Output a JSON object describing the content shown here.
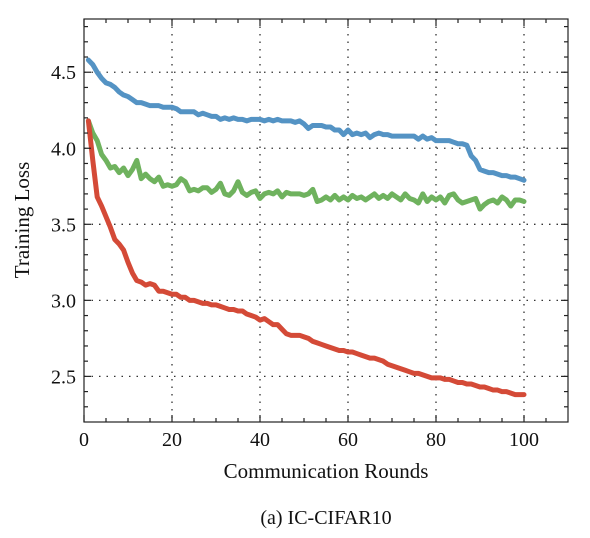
{
  "chart_data": {
    "type": "line",
    "title": "",
    "caption": "(a) IC-CIFAR10",
    "xlabel": "Communication Rounds",
    "ylabel": "Training Loss",
    "xlim": [
      0,
      110
    ],
    "ylim": [
      2.2,
      4.85
    ],
    "xticks": [
      0,
      20,
      40,
      60,
      80,
      100
    ],
    "yticks": [
      2.5,
      3.0,
      3.5,
      4.0,
      4.5
    ],
    "ytick_labels": [
      "2.5",
      "3.0",
      "3.5",
      "4.0",
      "4.5"
    ],
    "grid": true,
    "legend": "none",
    "series": [
      {
        "color": "#5493c4",
        "x": [
          1,
          2,
          3,
          4,
          5,
          6,
          7,
          8,
          9,
          10,
          11,
          12,
          13,
          14,
          15,
          16,
          17,
          18,
          19,
          20,
          21,
          22,
          23,
          24,
          25,
          26,
          27,
          28,
          29,
          30,
          31,
          32,
          33,
          34,
          35,
          36,
          37,
          38,
          39,
          40,
          41,
          42,
          43,
          44,
          45,
          46,
          47,
          48,
          49,
          50,
          51,
          52,
          53,
          54,
          55,
          56,
          57,
          58,
          59,
          60,
          61,
          62,
          63,
          64,
          65,
          66,
          67,
          68,
          69,
          70,
          71,
          72,
          73,
          74,
          75,
          76,
          77,
          78,
          79,
          80,
          81,
          82,
          83,
          84,
          85,
          86,
          87,
          88,
          89,
          90,
          91,
          92,
          93,
          94,
          95,
          96,
          97,
          98,
          99,
          100
        ],
        "values": [
          4.58,
          4.55,
          4.5,
          4.46,
          4.43,
          4.42,
          4.4,
          4.37,
          4.35,
          4.34,
          4.32,
          4.3,
          4.3,
          4.29,
          4.28,
          4.28,
          4.28,
          4.27,
          4.27,
          4.27,
          4.26,
          4.24,
          4.24,
          4.24,
          4.24,
          4.22,
          4.23,
          4.22,
          4.21,
          4.21,
          4.19,
          4.2,
          4.19,
          4.2,
          4.19,
          4.19,
          4.18,
          4.19,
          4.19,
          4.19,
          4.18,
          4.19,
          4.18,
          4.19,
          4.18,
          4.18,
          4.18,
          4.17,
          4.18,
          4.16,
          4.13,
          4.15,
          4.15,
          4.15,
          4.14,
          4.14,
          4.12,
          4.12,
          4.09,
          4.12,
          4.09,
          4.1,
          4.09,
          4.1,
          4.07,
          4.09,
          4.1,
          4.09,
          4.09,
          4.08,
          4.08,
          4.08,
          4.08,
          4.08,
          4.08,
          4.06,
          4.08,
          4.06,
          4.07,
          4.05,
          4.05,
          4.05,
          4.05,
          4.04,
          4.03,
          4.03,
          4.02,
          3.95,
          3.92,
          3.86,
          3.85,
          3.84,
          3.84,
          3.83,
          3.82,
          3.82,
          3.81,
          3.81,
          3.8,
          3.79
        ]
      },
      {
        "color": "#6fb25e",
        "x": [
          1,
          2,
          3,
          4,
          5,
          6,
          7,
          8,
          9,
          10,
          11,
          12,
          13,
          14,
          15,
          16,
          17,
          18,
          19,
          20,
          21,
          22,
          23,
          24,
          25,
          26,
          27,
          28,
          29,
          30,
          31,
          32,
          33,
          34,
          35,
          36,
          37,
          38,
          39,
          40,
          41,
          42,
          43,
          44,
          45,
          46,
          47,
          48,
          49,
          50,
          51,
          52,
          53,
          54,
          55,
          56,
          57,
          58,
          59,
          60,
          61,
          62,
          63,
          64,
          65,
          66,
          67,
          68,
          69,
          70,
          71,
          72,
          73,
          74,
          75,
          76,
          77,
          78,
          79,
          80,
          81,
          82,
          83,
          84,
          85,
          86,
          87,
          88,
          89,
          90,
          91,
          92,
          93,
          94,
          95,
          96,
          97,
          98,
          99,
          100
        ],
        "values": [
          4.18,
          4.1,
          4.05,
          3.96,
          3.92,
          3.87,
          3.88,
          3.84,
          3.87,
          3.82,
          3.86,
          3.92,
          3.8,
          3.83,
          3.8,
          3.78,
          3.81,
          3.75,
          3.76,
          3.75,
          3.76,
          3.8,
          3.78,
          3.72,
          3.73,
          3.72,
          3.74,
          3.74,
          3.71,
          3.73,
          3.77,
          3.7,
          3.69,
          3.72,
          3.78,
          3.71,
          3.69,
          3.71,
          3.72,
          3.67,
          3.7,
          3.71,
          3.7,
          3.72,
          3.68,
          3.71,
          3.7,
          3.7,
          3.7,
          3.69,
          3.7,
          3.73,
          3.65,
          3.66,
          3.68,
          3.66,
          3.69,
          3.66,
          3.68,
          3.66,
          3.69,
          3.67,
          3.68,
          3.66,
          3.68,
          3.7,
          3.67,
          3.69,
          3.67,
          3.7,
          3.68,
          3.66,
          3.7,
          3.67,
          3.66,
          3.64,
          3.7,
          3.65,
          3.68,
          3.66,
          3.68,
          3.64,
          3.69,
          3.7,
          3.66,
          3.64,
          3.65,
          3.66,
          3.67,
          3.6,
          3.63,
          3.65,
          3.66,
          3.64,
          3.68,
          3.66,
          3.62,
          3.66,
          3.66,
          3.65
        ]
      },
      {
        "color": "#d44a37",
        "x": [
          1,
          2,
          3,
          4,
          5,
          6,
          7,
          8,
          9,
          10,
          11,
          12,
          13,
          14,
          15,
          16,
          17,
          18,
          19,
          20,
          21,
          22,
          23,
          24,
          25,
          26,
          27,
          28,
          29,
          30,
          31,
          32,
          33,
          34,
          35,
          36,
          37,
          38,
          39,
          40,
          41,
          42,
          43,
          44,
          45,
          46,
          47,
          48,
          49,
          50,
          51,
          52,
          53,
          54,
          55,
          56,
          57,
          58,
          59,
          60,
          61,
          62,
          63,
          64,
          65,
          66,
          67,
          68,
          69,
          70,
          71,
          72,
          73,
          74,
          75,
          76,
          77,
          78,
          79,
          80,
          81,
          82,
          83,
          84,
          85,
          86,
          87,
          88,
          89,
          90,
          91,
          92,
          93,
          94,
          95,
          96,
          97,
          98,
          99,
          100
        ],
        "values": [
          4.18,
          3.92,
          3.68,
          3.62,
          3.55,
          3.48,
          3.4,
          3.37,
          3.33,
          3.25,
          3.18,
          3.13,
          3.12,
          3.1,
          3.11,
          3.1,
          3.06,
          3.06,
          3.05,
          3.04,
          3.04,
          3.02,
          3.02,
          3.0,
          3.0,
          2.99,
          2.98,
          2.98,
          2.97,
          2.97,
          2.96,
          2.95,
          2.94,
          2.94,
          2.93,
          2.93,
          2.91,
          2.9,
          2.89,
          2.87,
          2.88,
          2.86,
          2.84,
          2.84,
          2.81,
          2.78,
          2.77,
          2.77,
          2.77,
          2.76,
          2.75,
          2.73,
          2.72,
          2.71,
          2.7,
          2.69,
          2.68,
          2.67,
          2.67,
          2.66,
          2.66,
          2.65,
          2.64,
          2.63,
          2.62,
          2.62,
          2.61,
          2.6,
          2.58,
          2.57,
          2.56,
          2.55,
          2.54,
          2.53,
          2.52,
          2.52,
          2.51,
          2.5,
          2.49,
          2.49,
          2.49,
          2.48,
          2.48,
          2.47,
          2.46,
          2.46,
          2.45,
          2.45,
          2.44,
          2.43,
          2.43,
          2.42,
          2.41,
          2.41,
          2.4,
          2.4,
          2.39,
          2.38,
          2.38,
          2.38
        ]
      }
    ]
  }
}
